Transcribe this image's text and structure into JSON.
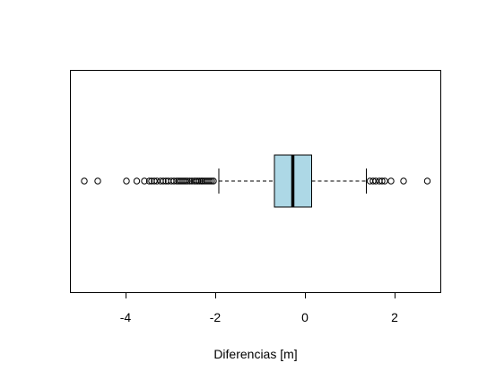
{
  "chart_data": {
    "type": "boxplot",
    "orientation": "horizontal",
    "title": "",
    "xlabel": "Diferencias [m]",
    "ylabel": "",
    "xlim": [
      -5.1,
      3.0
    ],
    "x_ticks": [
      -4,
      -2,
      0,
      2
    ],
    "x_tick_labels": [
      "-4",
      "-2",
      "0",
      "2"
    ],
    "box_color": "#ADD8E6",
    "grid": false,
    "legend": "none",
    "box": {
      "whisker_low": -1.92,
      "q1": -0.68,
      "median": -0.27,
      "q3": 0.15,
      "whisker_high": 1.37
    },
    "outliers": [
      -4.92,
      -4.62,
      -3.98,
      -3.75,
      -3.58,
      -3.47,
      -3.42,
      -3.36,
      -3.3,
      -3.22,
      -3.16,
      -3.1,
      -3.05,
      -2.98,
      -2.92,
      -2.86,
      -2.82,
      -2.78,
      -2.74,
      -2.7,
      -2.66,
      -2.62,
      -2.57,
      -2.52,
      -2.47,
      -2.43,
      -2.39,
      -2.35,
      -2.31,
      -2.28,
      -2.24,
      -2.2,
      -2.16,
      -2.12,
      -2.08,
      -2.04,
      1.45,
      1.52,
      1.58,
      1.66,
      1.72,
      1.78,
      1.92,
      2.2,
      2.73
    ]
  }
}
